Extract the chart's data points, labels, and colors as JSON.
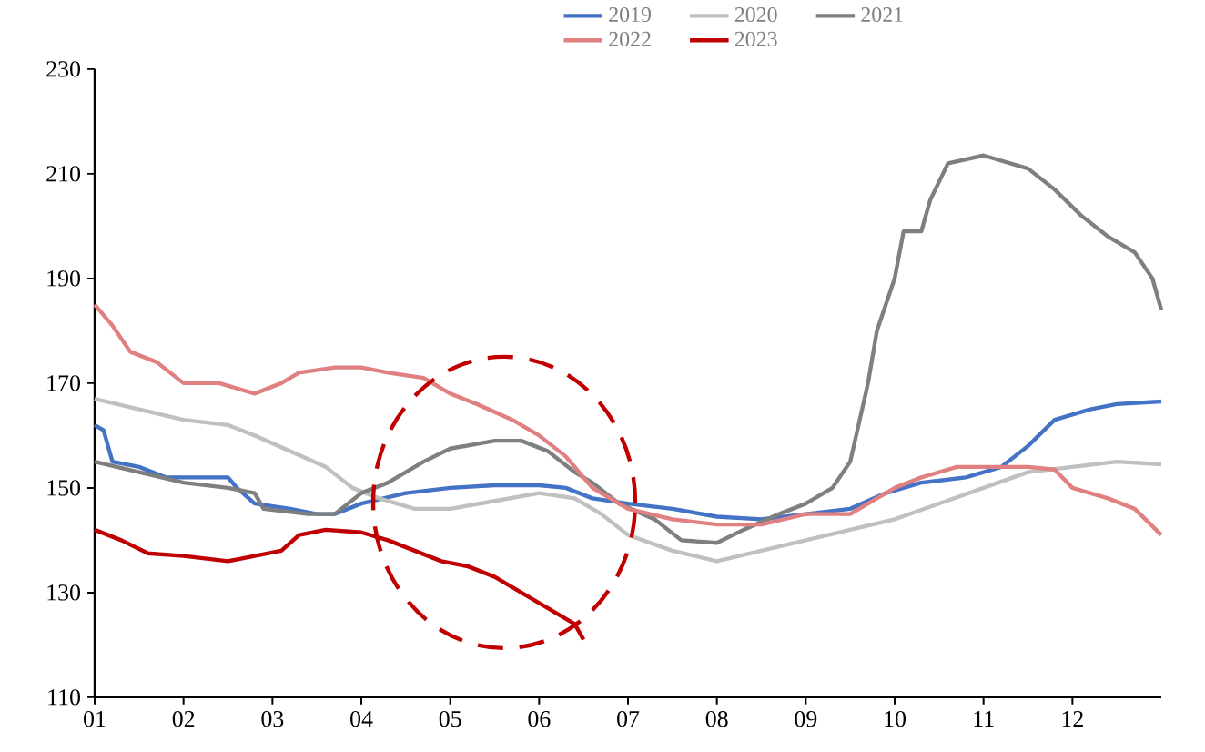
{
  "chart_data": {
    "type": "line",
    "xlim": [
      1,
      13
    ],
    "ylim": [
      110,
      230
    ],
    "xticks": [
      {
        "value": 1,
        "label": "01"
      },
      {
        "value": 2,
        "label": "02"
      },
      {
        "value": 3,
        "label": "03"
      },
      {
        "value": 4,
        "label": "04"
      },
      {
        "value": 5,
        "label": "05"
      },
      {
        "value": 6,
        "label": "06"
      },
      {
        "value": 7,
        "label": "07"
      },
      {
        "value": 8,
        "label": "08"
      },
      {
        "value": 9,
        "label": "09"
      },
      {
        "value": 10,
        "label": "10"
      },
      {
        "value": 11,
        "label": "11"
      },
      {
        "value": 12,
        "label": "12"
      }
    ],
    "yticks": [
      110,
      130,
      150,
      170,
      190,
      210,
      230
    ],
    "legend": "top",
    "series": [
      {
        "name": "2019",
        "color": "#4472c4",
        "x": [
          1.0,
          1.1,
          1.2,
          1.5,
          1.8,
          2.5,
          2.6,
          2.8,
          3.2,
          3.5,
          3.7,
          4.0,
          4.5,
          5.0,
          5.5,
          6.0,
          6.3,
          6.6,
          7.0,
          7.5,
          8.0,
          8.5,
          9.0,
          9.5,
          9.9,
          10.3,
          10.8,
          11.2,
          11.5,
          11.8,
          12.2,
          12.5,
          13.0
        ],
        "values": [
          162,
          161,
          155,
          154,
          152,
          152,
          150,
          147,
          146,
          145,
          145,
          147,
          149,
          150,
          150.5,
          150.5,
          150,
          148,
          147,
          146,
          144.5,
          144,
          145,
          146,
          149,
          151,
          152,
          154,
          158,
          163,
          165,
          166,
          166.5
        ]
      },
      {
        "name": "2020",
        "color": "#c0c0c0",
        "x": [
          1.0,
          1.5,
          2.0,
          2.5,
          2.8,
          3.2,
          3.6,
          3.9,
          4.2,
          4.6,
          5.0,
          5.5,
          6.0,
          6.4,
          6.7,
          7.0,
          7.5,
          8.0,
          8.5,
          9.0,
          9.5,
          10.0,
          10.5,
          11.0,
          11.5,
          12.0,
          12.5,
          13.0
        ],
        "values": [
          167,
          165,
          163,
          162,
          160,
          157,
          154,
          150,
          148,
          146,
          146,
          147.5,
          149,
          148,
          145,
          141,
          138,
          136,
          138,
          140,
          142,
          144,
          147,
          150,
          153,
          154,
          155,
          154.5
        ]
      },
      {
        "name": "2021",
        "color": "#7f7f7f",
        "x": [
          1.0,
          1.5,
          2.0,
          2.5,
          2.8,
          2.9,
          3.4,
          3.7,
          4.0,
          4.3,
          4.7,
          5.0,
          5.5,
          5.8,
          6.1,
          6.4,
          6.6,
          6.9,
          7.3,
          7.6,
          8.0,
          8.3,
          8.7,
          9.0,
          9.3,
          9.5,
          9.7,
          9.8,
          10.0,
          10.1,
          10.3,
          10.4,
          10.6,
          11.0,
          11.3,
          11.5,
          11.8,
          12.1,
          12.4,
          12.7,
          12.9,
          13.0
        ],
        "values": [
          155,
          153,
          151,
          150,
          149,
          146,
          145,
          145,
          149,
          151,
          155,
          157.5,
          159,
          159,
          157,
          153,
          151,
          147,
          144,
          140,
          139.5,
          142,
          145,
          147,
          150,
          155,
          170,
          180,
          190,
          199,
          199,
          205,
          212,
          213.5,
          212,
          211,
          207,
          202,
          198,
          195,
          190,
          184
        ]
      },
      {
        "name": "2022",
        "color": "#e08080",
        "x": [
          1.0,
          1.2,
          1.4,
          1.7,
          2.0,
          2.4,
          2.8,
          3.1,
          3.3,
          3.7,
          4.0,
          4.3,
          4.7,
          5.0,
          5.3,
          5.7,
          6.0,
          6.3,
          6.6,
          7.0,
          7.5,
          8.0,
          8.5,
          9.0,
          9.5,
          10.0,
          10.3,
          10.7,
          11.0,
          11.5,
          11.8,
          12.0,
          12.4,
          12.7,
          13.0
        ],
        "values": [
          185,
          181,
          176,
          174,
          170,
          170,
          168,
          170,
          172,
          173,
          173,
          172,
          171,
          168,
          166,
          163,
          160,
          156,
          150,
          146,
          144,
          143,
          143,
          145,
          145,
          150,
          152,
          154,
          154,
          154,
          153.5,
          150,
          148,
          146,
          141
        ]
      },
      {
        "name": "2023",
        "color": "#c00000",
        "x": [
          1.0,
          1.3,
          1.6,
          2.0,
          2.5,
          2.8,
          3.1,
          3.3,
          3.6,
          4.0,
          4.3,
          4.6,
          4.9,
          5.2,
          5.5,
          5.8,
          6.1,
          6.4,
          6.5
        ],
        "values": [
          142,
          140,
          137.5,
          137,
          136,
          137,
          138,
          141,
          142,
          141.5,
          140,
          138,
          136,
          135,
          133,
          130,
          127,
          124,
          121
        ]
      }
    ]
  }
}
